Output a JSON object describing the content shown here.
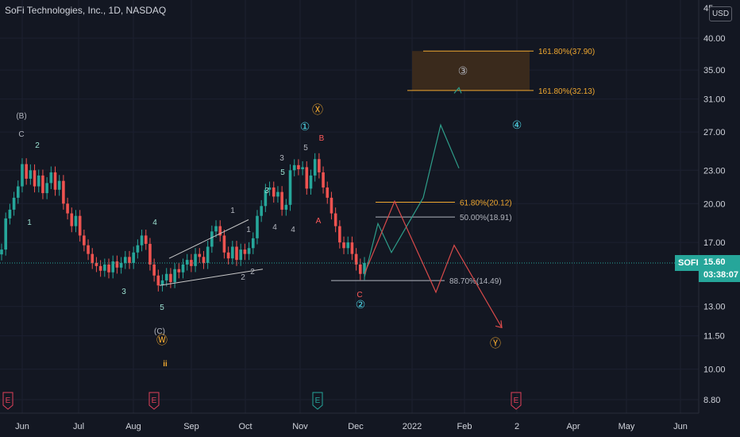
{
  "header": {
    "symbol_title": "SoFi Technologies, Inc., 1D, NASDAQ",
    "currency": "USD",
    "top_tick": "45"
  },
  "last_price": {
    "symbol": "SOFI",
    "price": "15.60",
    "countdown": "03:38:07",
    "value": 15.6
  },
  "colors": {
    "background": "#131722",
    "up": "#26a69a",
    "down": "#ef5350",
    "orange": "#f0a830",
    "cyan": "#4dd0e1",
    "wave_label": "#9be0d0",
    "red_label": "#ff5a5a",
    "green_path": "#2e9e8a",
    "red_path": "#d84a4a",
    "earnings": "#e0405a",
    "earnings_green": "#26a69a"
  },
  "chart_data": {
    "type": "candlestick",
    "title": "SoFi Technologies, Inc., 1D, NASDAQ",
    "y_axis": {
      "scale": "log",
      "ticks": [
        "40.00",
        "35.00",
        "31.00",
        "27.00",
        "23.00",
        "20.00",
        "17.00",
        "13.00",
        "11.50",
        "10.00",
        "8.80"
      ],
      "tick_values": [
        40,
        35,
        31,
        27,
        23,
        20,
        17,
        13,
        11.5,
        10,
        8.8
      ]
    },
    "x_axis": {
      "ticks": [
        "Jun",
        "Jul",
        "Aug",
        "Sep",
        "Oct",
        "Nov",
        "Dec",
        "2022",
        "Feb",
        "2",
        "Apr",
        "May",
        "Jun"
      ]
    },
    "price_series": {
      "name": "SOFI",
      "approx_closes": [
        16.5,
        18.8,
        19.5,
        20.5,
        21.5,
        23.6,
        22.2,
        23.0,
        21.5,
        22.5,
        20.9,
        21.8,
        22.8,
        21.2,
        22.0,
        20.0,
        19.2,
        18.2,
        19.0,
        17.5,
        16.8,
        16.2,
        15.6,
        15.4,
        15.1,
        15.5,
        15.0,
        15.7,
        15.3,
        15.6,
        16.0,
        15.6,
        16.3,
        16.8,
        17.5,
        16.9,
        15.5,
        14.8,
        14.2,
        14.5,
        14.9,
        14.4,
        15.2,
        15.0,
        15.5,
        15.8,
        15.4,
        16.2,
        16.0,
        15.6,
        16.7,
        17.8,
        18.2,
        17.5,
        16.3,
        15.9,
        16.7,
        15.8,
        16.5,
        16.2,
        16.6,
        17.3,
        19.0,
        19.8,
        21.2,
        21.4,
        20.6,
        21.0,
        19.5,
        19.9,
        23.0,
        23.5,
        23.1,
        23.3,
        21.3,
        22.5,
        24.1,
        22.8,
        21.4,
        20.5,
        19.2,
        18.2,
        17.0,
        16.6,
        17.0,
        16.2,
        15.5,
        14.9,
        15.6
      ]
    },
    "trend_lines": [
      {
        "name": "wedge-upper",
        "from": [
          "late Aug",
          15.9
        ],
        "to": [
          "mid Oct",
          18.7
        ]
      },
      {
        "name": "wedge-lower",
        "from": [
          "mid Aug",
          14.2
        ],
        "to": [
          "late Oct",
          15.2
        ]
      }
    ],
    "fib_levels": [
      {
        "label": "161.80%(37.90)",
        "value": 37.9,
        "color": "#f0a830"
      },
      {
        "label": "161.80%(32.13)",
        "value": 32.13,
        "color": "#f0a830"
      },
      {
        "label": "61.80%(20.12)",
        "value": 20.12,
        "color": "#f0a830"
      },
      {
        "label": "50.00%(18.91)",
        "value": 18.91,
        "color": "#b2b5be"
      },
      {
        "label": "88.70%(14.49)",
        "value": 14.49,
        "color": "#b2b5be"
      }
    ],
    "target_zone": {
      "from": 32.13,
      "to": 37.9,
      "label": "③"
    },
    "projected_paths": [
      {
        "name": "bullish",
        "color": "#2e9e8a",
        "points": [
          14.7,
          18.4,
          16.3,
          20.5,
          27.8,
          23.2,
          32.5
        ]
      },
      {
        "name": "bearish",
        "color": "#d84a4a",
        "points": [
          14.9,
          20.2,
          13.8,
          16.8,
          11.9
        ]
      }
    ],
    "wave_labels": [
      {
        "text": "(B)",
        "color": "#b2b5be"
      },
      {
        "text": "C",
        "color": "#b2b5be"
      },
      {
        "text": "2",
        "color": "#9be0d0"
      },
      {
        "text": "1",
        "color": "#9be0d0"
      },
      {
        "text": "3",
        "color": "#9be0d0"
      },
      {
        "text": "4",
        "color": "#9be0d0"
      },
      {
        "text": "5",
        "color": "#9be0d0"
      },
      {
        "text": "(C)",
        "color": "#b2b5be"
      },
      {
        "text": "Ⓦ",
        "color": "#f0a830"
      },
      {
        "text": "ii",
        "color": "#f0a830"
      },
      {
        "text": "1",
        "color": "#b2b5be"
      },
      {
        "text": "1",
        "color": "#b2b5be"
      },
      {
        "text": "2",
        "color": "#b2b5be"
      },
      {
        "text": "2",
        "color": "#b2b5be"
      },
      {
        "text": "3",
        "color": "#9be0d0"
      },
      {
        "text": "4",
        "color": "#b2b5be"
      },
      {
        "text": "4",
        "color": "#b2b5be"
      },
      {
        "text": "3",
        "color": "#b2b5be"
      },
      {
        "text": "5",
        "color": "#9be0d0"
      },
      {
        "text": "①",
        "color": "#4dd0e1"
      },
      {
        "text": "5",
        "color": "#b2b5be"
      },
      {
        "text": "Ⓧ",
        "color": "#f0a830"
      },
      {
        "text": "B",
        "color": "#ff5a5a"
      },
      {
        "text": "A",
        "color": "#ff5a5a"
      },
      {
        "text": "C",
        "color": "#ff5a5a"
      },
      {
        "text": "②",
        "color": "#4dd0e1"
      },
      {
        "text": "④",
        "color": "#4dd0e1"
      },
      {
        "text": "Ⓨ",
        "color": "#f0a830"
      }
    ],
    "earnings_markers": [
      {
        "text": "E",
        "color": "#e0405a"
      },
      {
        "text": "E",
        "color": "#e0405a"
      },
      {
        "text": "E",
        "color": "#26a69a"
      },
      {
        "text": "E",
        "color": "#e0405a"
      }
    ]
  }
}
